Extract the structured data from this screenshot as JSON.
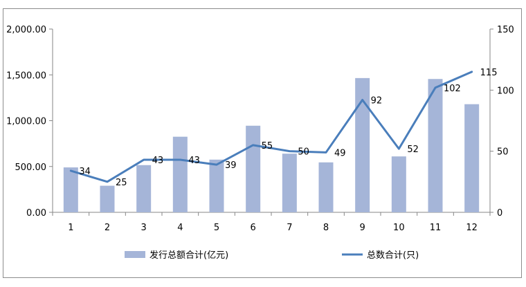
{
  "chart_data": {
    "type": "bar+line",
    "title": "",
    "categories": [
      "1",
      "2",
      "3",
      "4",
      "5",
      "6",
      "7",
      "8",
      "9",
      "10",
      "11",
      "12"
    ],
    "series": [
      {
        "name": "发行总额合计(亿元)",
        "type": "bar",
        "axis": "left",
        "color": "#a5b5d8",
        "values": [
          490,
          290,
          515,
          825,
          575,
          945,
          640,
          545,
          1465,
          610,
          1455,
          1180
        ]
      },
      {
        "name": "总数合计(只)",
        "type": "line",
        "axis": "right",
        "color": "#4a7ebb",
        "values": [
          34,
          25,
          43,
          43,
          39,
          55,
          50,
          49,
          92,
          52,
          102,
          115
        ],
        "labels": [
          "34",
          "25",
          "43",
          "43",
          "39",
          "55",
          "50",
          "49",
          "92",
          "52",
          "102",
          "115"
        ]
      }
    ],
    "y_left": {
      "min": 0,
      "max": 2000,
      "ticks": [
        "0.00",
        "500.00",
        "1,000.00",
        "1,500.00",
        "2,000.00"
      ],
      "tick_values": [
        0,
        500,
        1000,
        1500,
        2000
      ]
    },
    "y_right": {
      "min": 0,
      "max": 150,
      "ticks": [
        "0",
        "50",
        "100",
        "150"
      ],
      "tick_values": [
        0,
        50,
        100,
        150
      ]
    },
    "grid": false,
    "legend_position": "bottom"
  }
}
